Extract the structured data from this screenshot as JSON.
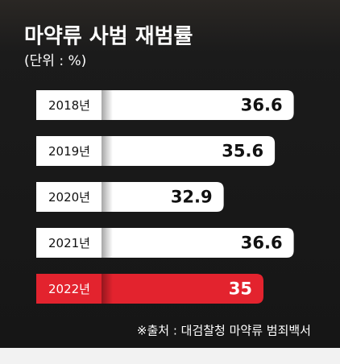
{
  "chart_data": {
    "type": "hbar",
    "title": "마약류 사범 재범률",
    "subtitle": "(단위 : %)",
    "categories": [
      "2018년",
      "2019년",
      "2020년",
      "2021년",
      "2022년"
    ],
    "values": [
      36.6,
      35.6,
      32.9,
      36.6,
      35
    ],
    "colors": [
      "#ffffff",
      "#ffffff",
      "#ffffff",
      "#ffffff",
      "#e3232e"
    ],
    "xlim": [
      23,
      38
    ],
    "source": "※출처 : 대검찰청 마약류 범죄백서"
  }
}
